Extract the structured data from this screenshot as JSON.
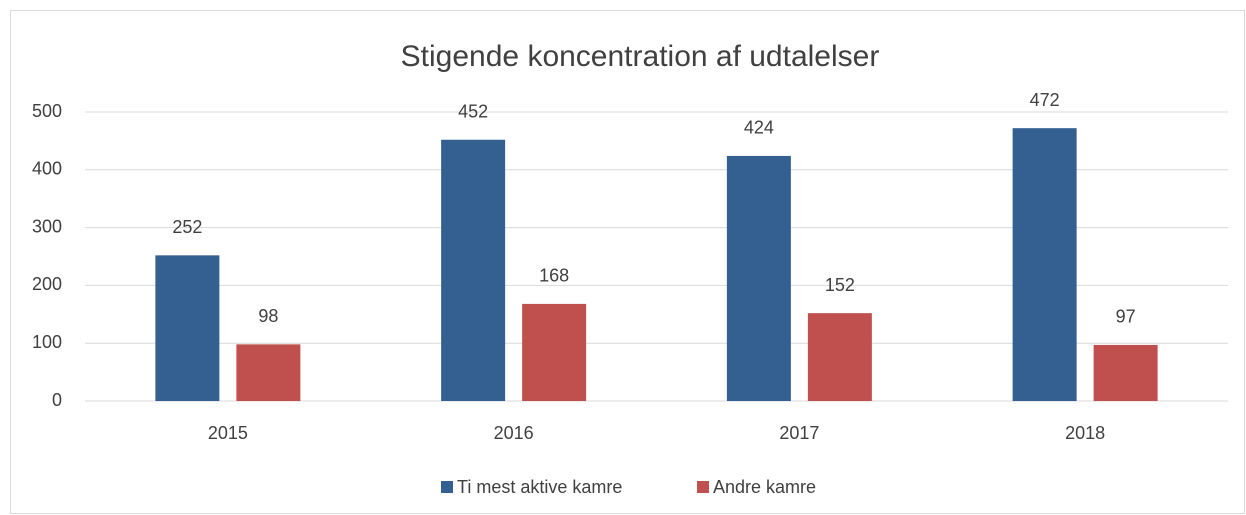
{
  "chart_data": {
    "type": "bar",
    "title": "Stigende koncentration af udtalelser",
    "categories": [
      "2015",
      "2016",
      "2017",
      "2018"
    ],
    "series": [
      {
        "name": "Ti mest aktive kamre",
        "color": "#335f91",
        "values": [
          252,
          452,
          424,
          472
        ]
      },
      {
        "name": "Andre kamre",
        "color": "#c0504d",
        "values": [
          98,
          168,
          152,
          97
        ]
      }
    ],
    "ylim": [
      0,
      500
    ],
    "yticks": [
      0,
      100,
      200,
      300,
      400,
      500
    ],
    "grid": true,
    "legend": "bottom"
  }
}
